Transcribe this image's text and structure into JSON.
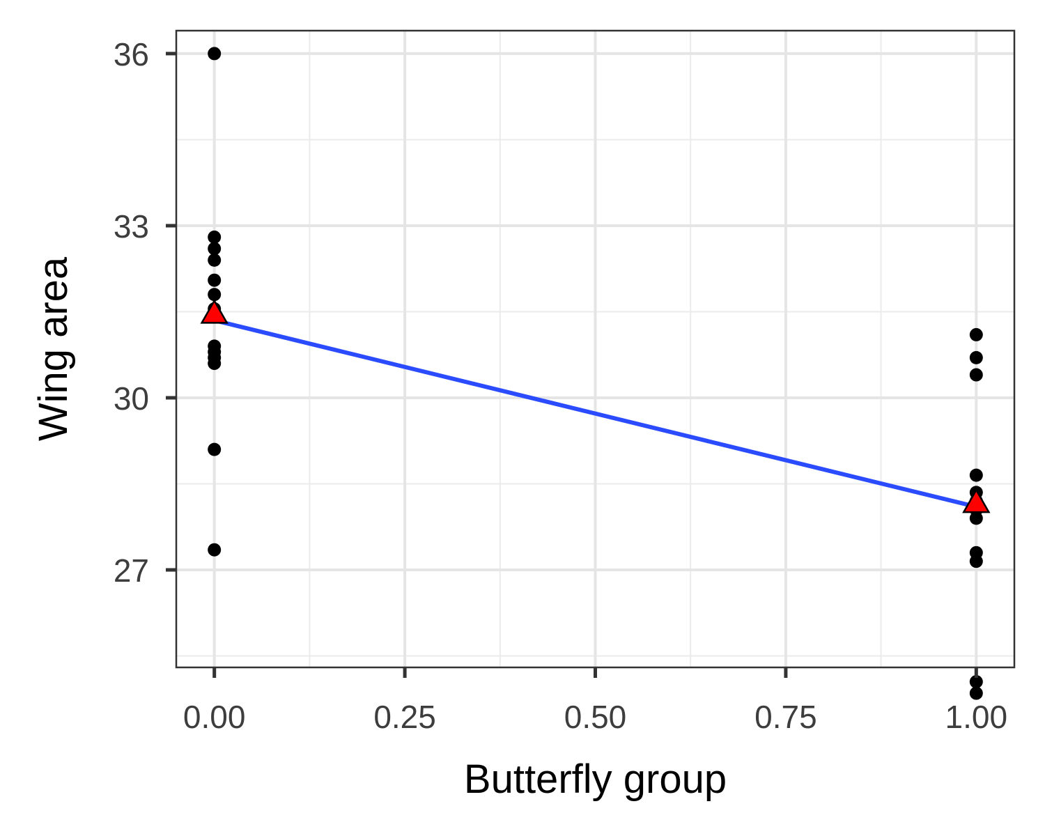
{
  "chart_data": {
    "type": "scatter",
    "title": "",
    "xlabel": "Butterfly group",
    "ylabel": "Wing area",
    "xlim": [
      -0.05,
      1.05
    ],
    "ylim": [
      25.3,
      36.4
    ],
    "x_ticks": [
      0,
      0.25,
      0.5,
      0.75,
      1
    ],
    "x_tick_labels": [
      "0.00",
      "0.25",
      "0.50",
      "0.75",
      "1.00"
    ],
    "y_ticks": [
      27,
      30,
      33,
      36
    ],
    "y_tick_labels": [
      "27",
      "30",
      "33",
      "36"
    ],
    "grid": true,
    "legend": "none",
    "series": [
      {
        "kind": "points",
        "color": "#000000",
        "points": [
          [
            0,
            36.0
          ],
          [
            0,
            32.8
          ],
          [
            0,
            32.6
          ],
          [
            0,
            32.4
          ],
          [
            0,
            32.05
          ],
          [
            0,
            31.8
          ],
          [
            0,
            31.55
          ],
          [
            0,
            30.9
          ],
          [
            0,
            30.8
          ],
          [
            0,
            30.7
          ],
          [
            0,
            30.6
          ],
          [
            0,
            29.1
          ],
          [
            0,
            27.35
          ],
          [
            1,
            31.1
          ],
          [
            1,
            30.7
          ],
          [
            1,
            30.4
          ],
          [
            1,
            28.65
          ],
          [
            1,
            28.35
          ],
          [
            1,
            28.2
          ],
          [
            1,
            28.05
          ],
          [
            1,
            27.9
          ],
          [
            1,
            27.3
          ],
          [
            1,
            27.15
          ],
          [
            1,
            25.05
          ],
          [
            1,
            24.85
          ]
        ]
      },
      {
        "kind": "group-means",
        "color": "#ff0000",
        "points": [
          [
            0,
            31.45
          ],
          [
            1,
            28.15
          ]
        ]
      },
      {
        "kind": "fitted-line",
        "color": "#2b4bff",
        "points": [
          [
            0,
            31.35
          ],
          [
            1,
            28.1
          ]
        ]
      }
    ]
  }
}
